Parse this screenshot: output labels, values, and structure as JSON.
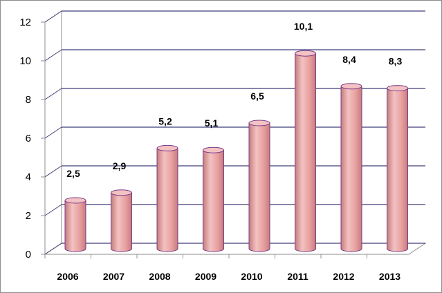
{
  "chart_data": {
    "type": "bar",
    "style": "3d-cylinder",
    "categories": [
      "2006",
      "2007",
      "2008",
      "2009",
      "2010",
      "2011",
      "2012",
      "2013"
    ],
    "values": [
      2.5,
      2.9,
      5.2,
      5.1,
      6.5,
      10.1,
      8.4,
      8.3
    ],
    "data_labels": [
      "2,5",
      "2,9",
      "5,2",
      "5,1",
      "6,5",
      "10,1",
      "8,4",
      "8,3"
    ],
    "yticks": [
      "0",
      "2",
      "4",
      "6",
      "8",
      "10",
      "12"
    ],
    "ylim": [
      0,
      12
    ],
    "grid": true,
    "legend": "none",
    "colors": {
      "bar_fill": "#e8a0a0",
      "bar_dark": "#c67c7c",
      "bar_top": "#f3c2c2",
      "bar_outline": "#7a3a8a",
      "grid": "#3f3f7a"
    }
  }
}
